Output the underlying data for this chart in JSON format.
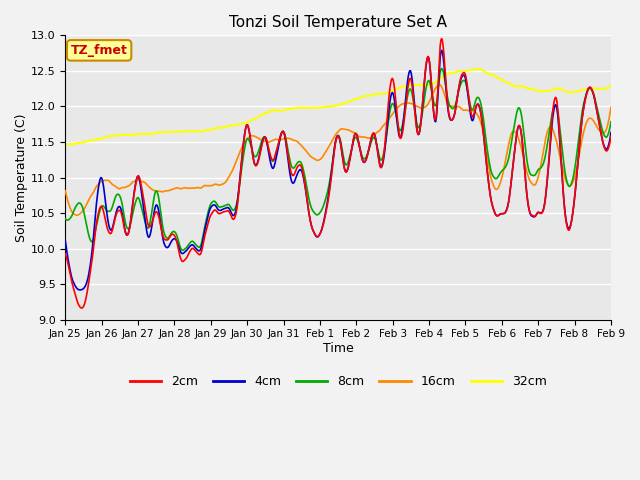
{
  "title": "Tonzi Soil Temperature Set A",
  "xlabel": "Time",
  "ylabel": "Soil Temperature (C)",
  "ylim": [
    9.0,
    13.0
  ],
  "yticks": [
    9.0,
    9.5,
    10.0,
    10.5,
    11.0,
    11.5,
    12.0,
    12.5,
    13.0
  ],
  "annotation_text": "TZ_fmet",
  "annotation_box_color": "#FFFF99",
  "annotation_border_color": "#CC8800",
  "annotation_text_color": "#CC0000",
  "bg_color": "#E8E8E8",
  "grid_color": "#FFFFFF",
  "series": {
    "2cm": {
      "color": "#FF0000",
      "lw": 1.2
    },
    "4cm": {
      "color": "#0000CC",
      "lw": 1.2
    },
    "8cm": {
      "color": "#00AA00",
      "lw": 1.2
    },
    "16cm": {
      "color": "#FF8800",
      "lw": 1.2
    },
    "32cm": {
      "color": "#FFFF00",
      "lw": 1.5
    }
  },
  "xtick_labels": [
    "Jan 25",
    "Jan 26",
    "Jan 27",
    "Jan 28",
    "Jan 29",
    "Jan 30",
    "Jan 31",
    "Feb 1",
    "Feb 2",
    "Feb 3",
    "Feb 4",
    "Feb 5",
    "Feb 6",
    "Feb 7",
    "Feb 8",
    "Feb 9"
  ],
  "figsize": [
    6.4,
    4.8
  ],
  "dpi": 100
}
